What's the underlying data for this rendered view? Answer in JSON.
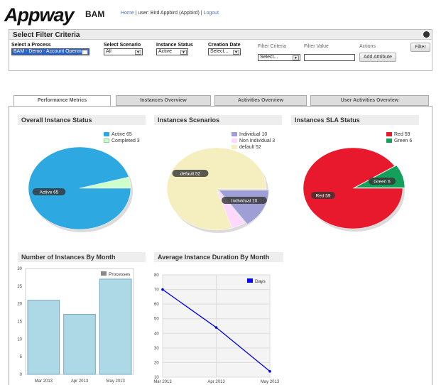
{
  "header": {
    "logo": "Appway",
    "app": "BAM",
    "nav": {
      "home": "Home",
      "sep1": "|",
      "user": "user: Bird Appbird (Appbird)",
      "sep2": "|",
      "logout": "Logout"
    }
  },
  "filter": {
    "title": "Select Filter Criteria",
    "process": {
      "label": "Select a Process",
      "value": "BAM - Demo - Account Opening"
    },
    "scenario": {
      "label": "Select Scenario",
      "value": "All"
    },
    "status": {
      "label": "Instance Status",
      "value": "Active"
    },
    "creation": {
      "label": "Creation Date",
      "value": "Select..."
    },
    "grid": {
      "criteria_header": "Filter Criteria",
      "value_header": "Filter Value",
      "actions_header": "Actions",
      "criteria_value": "Select...",
      "add_button": "Add Attribute"
    },
    "filter_button": "Filter"
  },
  "tabs": [
    {
      "label": "Performance Metrics",
      "active": true
    },
    {
      "label": "Instances Overview"
    },
    {
      "label": "Activities Overview"
    },
    {
      "label": "User Activities Overview"
    }
  ],
  "charts": {
    "overall": {
      "title": "Overall Instance Status",
      "legend": [
        "Active 65",
        "Completed 3"
      ],
      "slice_label": "Active 65",
      "colors": [
        "#2da8e0",
        "#ccffcc"
      ]
    },
    "scenarios": {
      "title": "Instances Scenarios",
      "legend": [
        "Individual 10",
        "Non Individual 3",
        "default 52"
      ],
      "labels": [
        "default 52",
        "Individual 10"
      ],
      "colors": [
        "#9f9fd6",
        "#ffd8ff",
        "#f5efc0"
      ]
    },
    "sla": {
      "title": "Instances SLA Status",
      "legend": [
        "Red 59",
        "Green 6"
      ],
      "labels": [
        "Red 59",
        "Green 6"
      ],
      "colors": [
        "#e8192c",
        "#14a05a"
      ]
    },
    "monthly": {
      "title": "Number of Instances By Month",
      "legend": "Processes"
    },
    "duration": {
      "title": "Average Instance Duration By Month",
      "legend": "Days"
    }
  },
  "chart_data": [
    {
      "type": "pie",
      "title": "Overall Instance Status",
      "categories": [
        "Active",
        "Completed"
      ],
      "values": [
        65,
        3
      ]
    },
    {
      "type": "pie",
      "title": "Instances Scenarios",
      "categories": [
        "Individual",
        "Non Individual",
        "default"
      ],
      "values": [
        10,
        3,
        52
      ]
    },
    {
      "type": "pie",
      "title": "Instances SLA Status",
      "categories": [
        "Red",
        "Green"
      ],
      "values": [
        59,
        6
      ]
    },
    {
      "type": "bar",
      "title": "Number of Instances By Month",
      "categories": [
        "Mar 2013",
        "Apr 2013",
        "May 2013"
      ],
      "series": [
        {
          "name": "Processes",
          "values": [
            21,
            17,
            27
          ]
        }
      ],
      "ylim": [
        0,
        30
      ],
      "yticks": [
        0,
        5,
        10,
        15,
        20,
        25,
        30
      ],
      "grid": false,
      "legend": "top-right"
    },
    {
      "type": "line",
      "title": "Average Instance Duration By Month",
      "categories": [
        "Mar 2013",
        "Apr 2013",
        "May 2013"
      ],
      "series": [
        {
          "name": "Days",
          "values": [
            70,
            44,
            14
          ]
        }
      ],
      "ylim": [
        10,
        80
      ],
      "yticks": [
        10,
        20,
        30,
        40,
        50,
        60,
        70,
        80
      ],
      "grid": true,
      "legend": "top-right"
    }
  ]
}
